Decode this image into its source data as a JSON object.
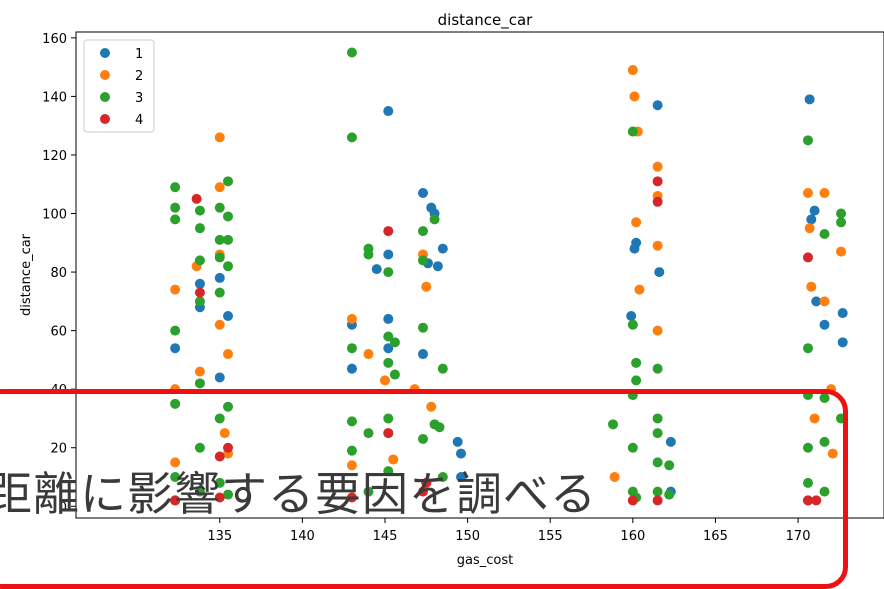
{
  "chart_data": {
    "type": "scatter",
    "title": "distance_car",
    "xlabel": "gas_cost",
    "ylabel": "distance_car",
    "xlim": [
      126.3,
      175.2
    ],
    "ylim": [
      -4,
      162
    ],
    "xticks": [
      "135",
      "140",
      "145",
      "150",
      "155",
      "160",
      "165",
      "170"
    ],
    "xtick_values": [
      135,
      140,
      145,
      150,
      155,
      160,
      165,
      170
    ],
    "yticks": [
      "0",
      "20",
      "40",
      "60",
      "80",
      "100",
      "120",
      "140",
      "160"
    ],
    "ytick_values": [
      0,
      20,
      40,
      60,
      80,
      100,
      120,
      140,
      160
    ],
    "legend_position": "top-left",
    "grid": false,
    "series": [
      {
        "name": "1",
        "color": "#1f77b4",
        "x": [
          132.3,
          133.8,
          133.8,
          135.0,
          135.0,
          135.5,
          143.0,
          143.0,
          144.5,
          145.2,
          145.2,
          145.2,
          145.2,
          147.3,
          147.3,
          147.6,
          147.8,
          148.0,
          148.2,
          148.5,
          149.4,
          149.6,
          149.6,
          159.9,
          160.1,
          160.2,
          161.5,
          161.6,
          162.3,
          162.3,
          170.7,
          170.8,
          171.0,
          171.1,
          171.6,
          172.7,
          172.7
        ],
        "y": [
          54,
          76,
          68,
          78,
          44,
          65,
          62,
          47,
          81,
          135,
          86,
          64,
          54,
          107,
          52,
          83,
          102,
          100,
          82,
          88,
          22,
          10,
          18,
          65,
          88,
          90,
          137,
          80,
          22,
          5,
          139,
          98,
          101,
          70,
          62,
          66,
          56
        ]
      },
      {
        "name": "2",
        "color": "#ff7f0e",
        "x": [
          132.3,
          132.3,
          132.3,
          133.6,
          133.8,
          135.0,
          135.0,
          135.0,
          135.0,
          135.3,
          135.5,
          135.5,
          143.0,
          143.0,
          144.0,
          145.0,
          145.2,
          145.5,
          146.8,
          147.3,
          147.5,
          147.8,
          158.9,
          160.0,
          160.1,
          160.2,
          160.3,
          160.4,
          161.5,
          161.5,
          161.5,
          161.5,
          170.6,
          170.7,
          170.8,
          171.0,
          171.6,
          171.6,
          172.0,
          172.1,
          172.6
        ],
        "y": [
          74,
          40,
          15,
          82,
          46,
          126,
          109,
          86,
          62,
          25,
          52,
          18,
          64,
          14,
          52,
          43,
          25,
          16,
          40,
          86,
          75,
          34,
          10,
          149,
          140,
          97,
          128,
          74,
          116,
          106,
          89,
          60,
          107,
          95,
          75,
          30,
          107,
          70,
          40,
          18,
          87
        ]
      },
      {
        "name": "3",
        "color": "#2ca02c",
        "x": [
          132.3,
          132.3,
          132.3,
          132.3,
          132.3,
          132.3,
          132.3,
          133.8,
          133.8,
          133.8,
          133.8,
          133.8,
          133.8,
          133.8,
          135.0,
          135.0,
          135.0,
          135.0,
          135.0,
          135.0,
          135.5,
          135.5,
          135.5,
          135.5,
          135.5,
          135.5,
          143.0,
          143.0,
          143.0,
          143.0,
          143.0,
          144.0,
          144.0,
          144.0,
          144.0,
          145.2,
          145.2,
          145.2,
          145.2,
          145.2,
          145.6,
          145.6,
          147.3,
          147.3,
          147.3,
          147.3,
          147.5,
          148.0,
          148.0,
          148.3,
          148.5,
          148.5,
          158.8,
          160.0,
          160.0,
          160.0,
          160.0,
          160.0,
          160.2,
          160.2,
          160.2,
          161.5,
          161.5,
          161.5,
          161.5,
          161.5,
          162.2,
          162.2,
          170.6,
          170.6,
          170.6,
          170.6,
          170.6,
          170.6,
          171.6,
          171.6,
          171.6,
          171.6,
          172.6,
          172.6,
          172.6
        ],
        "y": [
          109,
          102,
          98,
          60,
          35,
          10,
          2,
          101,
          95,
          84,
          70,
          42,
          20,
          5,
          102,
          91,
          85,
          73,
          30,
          8,
          111,
          99,
          91,
          82,
          34,
          4,
          155,
          126,
          54,
          29,
          19,
          88,
          86,
          25,
          5,
          80,
          58,
          49,
          30,
          12,
          56,
          45,
          94,
          84,
          61,
          23,
          8,
          28,
          98,
          27,
          47,
          10,
          28,
          128,
          62,
          38,
          20,
          5,
          49,
          43,
          3,
          47,
          30,
          25,
          15,
          5,
          14,
          4,
          125,
          54,
          38,
          20,
          8,
          2,
          93,
          37,
          22,
          5,
          100,
          97,
          30
        ]
      },
      {
        "name": "4",
        "color": "#d62728",
        "x": [
          132.3,
          133.6,
          133.8,
          135.0,
          135.0,
          135.5,
          143.0,
          145.2,
          145.2,
          147.3,
          147.5,
          160.0,
          161.5,
          161.5,
          161.5,
          170.6,
          170.6,
          171.1
        ],
        "y": [
          2,
          105,
          73,
          17,
          3,
          20,
          3,
          94,
          25,
          5,
          8,
          2,
          111,
          104,
          2,
          85,
          2,
          2
        ]
      }
    ]
  },
  "overlay": {
    "caption": "距離に影響する要因を調べる"
  }
}
